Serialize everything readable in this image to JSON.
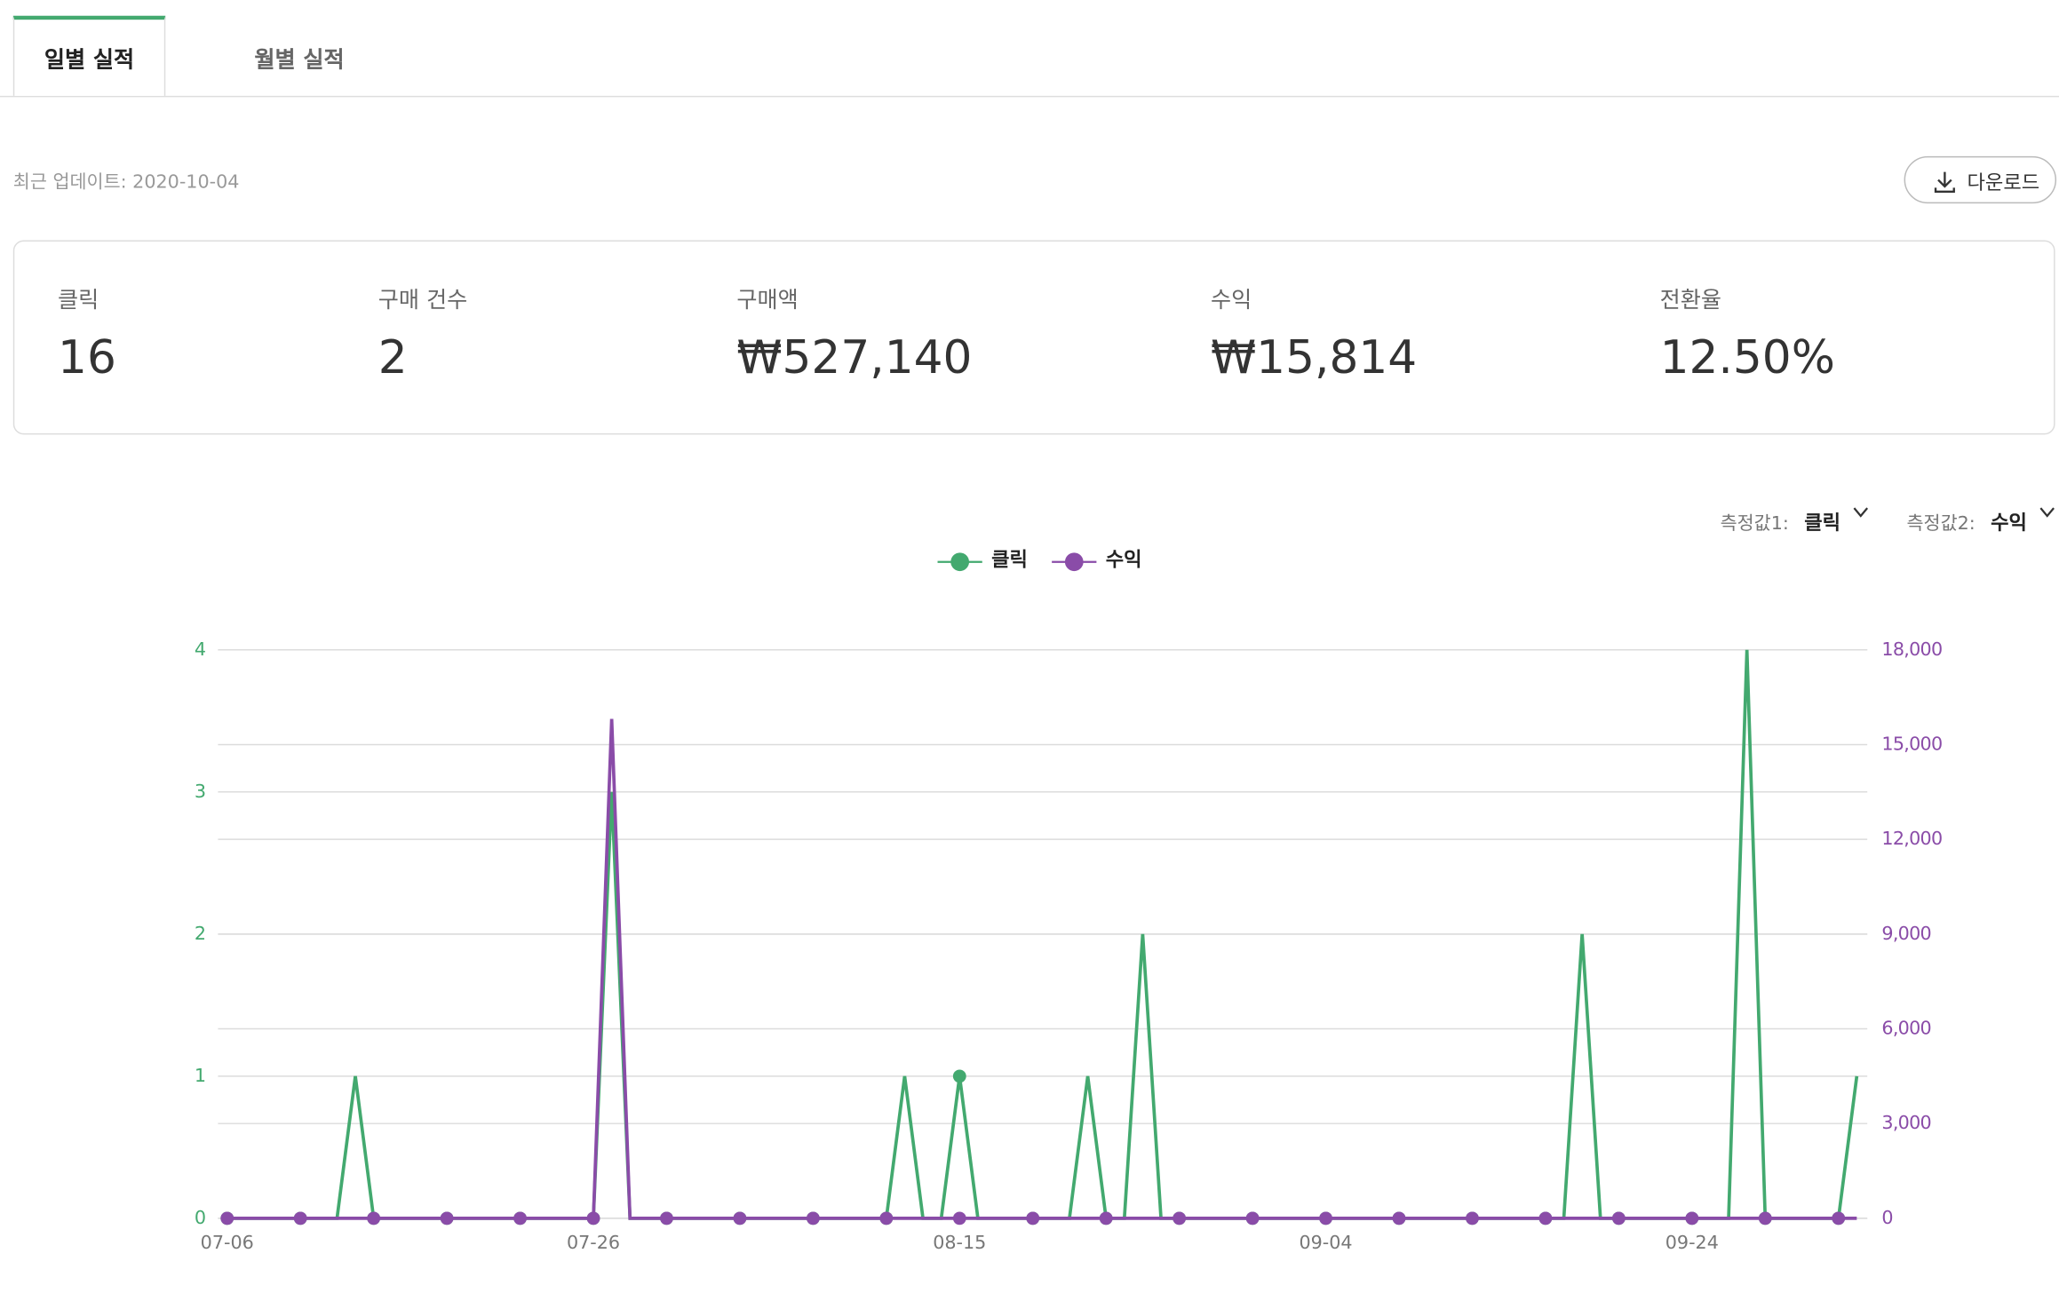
{
  "tabs": {
    "daily": "일별 실적",
    "monthly": "월별 실적"
  },
  "update": "최근 업데이트: 2020-10-04",
  "download": "다운로드",
  "stats": [
    {
      "label": "클릭",
      "value": "16"
    },
    {
      "label": "구매 건수",
      "value": "2"
    },
    {
      "label": "구매액",
      "value": "₩527,140"
    },
    {
      "label": "수익",
      "value": "₩15,814"
    },
    {
      "label": "전환율",
      "value": "12.50%"
    }
  ],
  "measures": [
    {
      "label": "측정값1:",
      "value": "클릭"
    },
    {
      "label": "측정값2:",
      "value": "수익"
    }
  ],
  "chart_data": {
    "type": "line",
    "categories": [
      "07-06",
      null,
      null,
      null,
      null,
      null,
      null,
      null,
      null,
      null,
      null,
      null,
      null,
      null,
      null,
      null,
      null,
      null,
      null,
      null,
      "07-26",
      null,
      null,
      null,
      null,
      null,
      null,
      null,
      null,
      null,
      null,
      null,
      null,
      null,
      null,
      null,
      null,
      null,
      null,
      null,
      "08-15",
      null,
      null,
      null,
      null,
      null,
      null,
      null,
      null,
      null,
      null,
      null,
      null,
      null,
      null,
      null,
      null,
      null,
      null,
      null,
      "09-04",
      null,
      null,
      null,
      null,
      null,
      null,
      null,
      null,
      null,
      null,
      null,
      null,
      null,
      null,
      null,
      null,
      null,
      null,
      null,
      "09-24",
      null,
      null,
      null,
      null,
      null,
      null,
      null,
      null,
      null
    ],
    "series": [
      {
        "name": "클릭",
        "color": "#43a96f",
        "values": [
          0,
          0,
          0,
          0,
          0,
          0,
          0,
          1,
          0,
          0,
          0,
          0,
          0,
          0,
          0,
          0,
          0,
          0,
          0,
          0,
          0,
          3,
          0,
          0,
          0,
          0,
          0,
          0,
          0,
          0,
          0,
          0,
          0,
          0,
          0,
          0,
          0,
          1,
          0,
          0,
          1,
          0,
          0,
          0,
          0,
          0,
          0,
          1,
          0,
          0,
          2,
          0,
          0,
          0,
          0,
          0,
          0,
          0,
          0,
          0,
          0,
          0,
          0,
          0,
          0,
          0,
          0,
          0,
          0,
          0,
          0,
          0,
          0,
          0,
          2,
          0,
          0,
          0,
          0,
          0,
          0,
          0,
          0,
          4,
          0,
          0,
          0,
          0,
          0,
          1
        ]
      },
      {
        "name": "수익",
        "color": "#8a4ca8",
        "axis": "y2",
        "values": [
          0,
          0,
          0,
          0,
          0,
          0,
          0,
          0,
          0,
          0,
          0,
          0,
          0,
          0,
          0,
          0,
          0,
          0,
          0,
          0,
          0,
          15814,
          0,
          0,
          0,
          0,
          0,
          0,
          0,
          0,
          0,
          0,
          0,
          0,
          0,
          0,
          0,
          0,
          0,
          0,
          0,
          0,
          0,
          0,
          0,
          0,
          0,
          0,
          0,
          0,
          0,
          0,
          0,
          0,
          0,
          0,
          0,
          0,
          0,
          0,
          0,
          0,
          0,
          0,
          0,
          0,
          0,
          0,
          0,
          0,
          0,
          0,
          0,
          0,
          0,
          0,
          0,
          0,
          0,
          0,
          0,
          0,
          0,
          0,
          0,
          0,
          0,
          0,
          0,
          0
        ]
      }
    ],
    "ylim": [
      0,
      4
    ],
    "yticks": [
      0,
      1,
      2,
      3,
      4
    ],
    "y2lim": [
      0,
      18000
    ],
    "y2ticks": [
      0,
      {
        "value": 3000,
        "label": "3,000"
      },
      {
        "value": 6000,
        "label": "6,000"
      },
      {
        "value": 9000,
        "label": "9,000"
      },
      {
        "value": 12000,
        "label": "12,000"
      },
      {
        "value": 15000,
        "label": "15,000"
      },
      {
        "value": 18000,
        "label": "18,000"
      }
    ],
    "grid": true,
    "legend": "top"
  }
}
